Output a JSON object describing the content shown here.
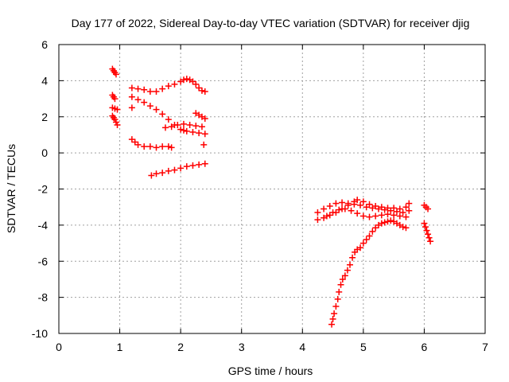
{
  "chart_data": {
    "type": "scatter",
    "title": "Day 177 of 2022, Sidereal Day-to-day VTEC variation (SDTVAR) for receiver djig",
    "xlabel": "GPS time / hours",
    "ylabel": "SDTVAR / TECUs",
    "xlim": [
      0,
      7
    ],
    "ylim": [
      -10,
      6
    ],
    "xticks": [
      0,
      1,
      2,
      3,
      4,
      5,
      6,
      7
    ],
    "yticks": [
      -10,
      -8,
      -6,
      -4,
      -2,
      0,
      2,
      4,
      6
    ],
    "grid": true,
    "legend": "none",
    "marker": "+",
    "color": "#ff0000",
    "series": [
      {
        "points": [
          [
            0.88,
            4.65
          ],
          [
            0.9,
            4.55
          ],
          [
            0.92,
            4.45
          ],
          [
            0.94,
            4.35
          ]
        ]
      },
      {
        "points": [
          [
            0.88,
            3.2
          ],
          [
            0.9,
            3.1
          ],
          [
            0.92,
            3.0
          ],
          [
            0.88,
            2.5
          ],
          [
            0.92,
            2.45
          ],
          [
            0.96,
            2.4
          ],
          [
            0.88,
            2.05
          ],
          [
            0.9,
            1.95
          ],
          [
            0.92,
            1.85
          ],
          [
            0.94,
            1.7
          ],
          [
            0.96,
            1.55
          ]
        ]
      },
      {
        "points": [
          [
            1.2,
            3.6
          ],
          [
            1.3,
            3.55
          ],
          [
            1.4,
            3.5
          ],
          [
            1.5,
            3.4
          ],
          [
            1.6,
            3.4
          ],
          [
            1.7,
            3.55
          ],
          [
            1.8,
            3.7
          ],
          [
            1.9,
            3.8
          ],
          [
            2.0,
            3.95
          ],
          [
            2.05,
            4.05
          ],
          [
            2.1,
            4.1
          ],
          [
            2.15,
            4.05
          ],
          [
            2.2,
            3.95
          ],
          [
            2.25,
            3.8
          ],
          [
            2.3,
            3.6
          ],
          [
            2.35,
            3.45
          ],
          [
            2.4,
            3.4
          ]
        ]
      },
      {
        "points": [
          [
            1.2,
            3.1
          ],
          [
            1.3,
            2.95
          ],
          [
            1.4,
            2.8
          ],
          [
            1.5,
            2.6
          ],
          [
            1.6,
            2.4
          ],
          [
            1.7,
            2.15
          ],
          [
            1.8,
            1.85
          ],
          [
            1.9,
            1.55
          ],
          [
            2.0,
            1.3
          ],
          [
            2.05,
            1.25
          ],
          [
            2.1,
            1.2
          ],
          [
            2.2,
            1.15
          ],
          [
            2.3,
            1.1
          ],
          [
            2.4,
            1.05
          ]
        ]
      },
      {
        "points": [
          [
            1.2,
            2.5
          ],
          [
            1.75,
            1.4
          ],
          [
            1.85,
            1.45
          ],
          [
            1.95,
            1.55
          ],
          [
            2.05,
            1.6
          ],
          [
            2.15,
            1.55
          ],
          [
            2.25,
            1.5
          ],
          [
            2.35,
            1.45
          ],
          [
            2.25,
            2.2
          ],
          [
            2.3,
            2.1
          ],
          [
            2.35,
            2.0
          ],
          [
            2.4,
            1.9
          ],
          [
            2.38,
            0.45
          ]
        ]
      },
      {
        "points": [
          [
            1.2,
            0.75
          ],
          [
            1.25,
            0.6
          ],
          [
            1.3,
            0.45
          ],
          [
            1.4,
            0.35
          ],
          [
            1.5,
            0.35
          ],
          [
            1.6,
            0.3
          ],
          [
            1.7,
            0.35
          ],
          [
            1.8,
            0.35
          ],
          [
            1.85,
            0.3
          ]
        ]
      },
      {
        "points": [
          [
            1.52,
            -1.25
          ],
          [
            1.6,
            -1.15
          ],
          [
            1.7,
            -1.1
          ],
          [
            1.8,
            -1.0
          ],
          [
            1.9,
            -0.95
          ],
          [
            2.0,
            -0.85
          ],
          [
            2.1,
            -0.75
          ],
          [
            2.2,
            -0.7
          ],
          [
            2.3,
            -0.65
          ],
          [
            2.4,
            -0.6
          ]
        ]
      },
      {
        "points": [
          [
            4.25,
            -3.3
          ],
          [
            4.35,
            -3.1
          ],
          [
            4.45,
            -2.95
          ],
          [
            4.55,
            -2.8
          ],
          [
            4.65,
            -2.75
          ],
          [
            4.75,
            -2.8
          ],
          [
            4.85,
            -2.85
          ],
          [
            4.95,
            -2.9
          ],
          [
            5.05,
            -3.0
          ],
          [
            5.15,
            -3.05
          ],
          [
            5.25,
            -3.1
          ],
          [
            5.35,
            -3.15
          ],
          [
            5.45,
            -3.2
          ],
          [
            5.55,
            -3.25
          ],
          [
            5.65,
            -3.3
          ],
          [
            5.75,
            -3.2
          ]
        ]
      },
      {
        "points": [
          [
            4.25,
            -3.7
          ],
          [
            4.35,
            -3.6
          ],
          [
            4.45,
            -3.45
          ],
          [
            4.55,
            -3.3
          ],
          [
            4.65,
            -3.1
          ],
          [
            4.75,
            -2.9
          ],
          [
            4.85,
            -2.7
          ],
          [
            4.9,
            -2.6
          ],
          [
            5.0,
            -2.7
          ],
          [
            5.1,
            -2.85
          ],
          [
            5.2,
            -2.95
          ],
          [
            5.3,
            -3.0
          ],
          [
            5.4,
            -3.05
          ],
          [
            5.5,
            -3.05
          ],
          [
            5.6,
            -3.1
          ],
          [
            5.7,
            -3.0
          ],
          [
            5.75,
            -2.8
          ]
        ]
      },
      {
        "points": [
          [
            4.4,
            -3.5
          ],
          [
            4.5,
            -3.3
          ],
          [
            4.6,
            -3.15
          ],
          [
            4.7,
            -3.1
          ],
          [
            4.8,
            -3.2
          ],
          [
            4.9,
            -3.35
          ],
          [
            5.0,
            -3.5
          ],
          [
            5.1,
            -3.55
          ],
          [
            5.2,
            -3.5
          ],
          [
            5.3,
            -3.45
          ],
          [
            5.4,
            -3.4
          ],
          [
            5.5,
            -3.45
          ],
          [
            5.6,
            -3.5
          ],
          [
            5.7,
            -3.55
          ]
        ]
      },
      {
        "points": [
          [
            4.48,
            -9.5
          ],
          [
            4.5,
            -9.2
          ],
          [
            4.52,
            -8.9
          ],
          [
            4.55,
            -8.5
          ],
          [
            4.58,
            -8.1
          ],
          [
            4.6,
            -7.7
          ],
          [
            4.63,
            -7.3
          ],
          [
            4.66,
            -7.0
          ],
          [
            4.7,
            -6.8
          ],
          [
            4.74,
            -6.5
          ],
          [
            4.78,
            -6.2
          ],
          [
            4.82,
            -5.8
          ],
          [
            4.86,
            -5.5
          ],
          [
            4.9,
            -5.35
          ],
          [
            4.95,
            -5.25
          ],
          [
            5.0,
            -5.0
          ],
          [
            5.05,
            -4.8
          ],
          [
            5.1,
            -4.6
          ],
          [
            5.15,
            -4.35
          ],
          [
            5.2,
            -4.15
          ],
          [
            5.25,
            -4.0
          ],
          [
            5.3,
            -3.9
          ],
          [
            5.35,
            -3.85
          ],
          [
            5.4,
            -3.8
          ],
          [
            5.45,
            -3.75
          ],
          [
            5.5,
            -3.8
          ],
          [
            5.55,
            -3.9
          ],
          [
            5.6,
            -4.0
          ],
          [
            5.65,
            -4.1
          ],
          [
            5.7,
            -4.15
          ]
        ]
      },
      {
        "points": [
          [
            6.0,
            -2.9
          ],
          [
            6.03,
            -3.0
          ],
          [
            6.06,
            -3.1
          ],
          [
            6.0,
            -3.9
          ],
          [
            6.02,
            -4.1
          ],
          [
            6.04,
            -4.3
          ],
          [
            6.06,
            -4.5
          ],
          [
            6.08,
            -4.7
          ],
          [
            6.1,
            -4.9
          ]
        ]
      }
    ]
  }
}
